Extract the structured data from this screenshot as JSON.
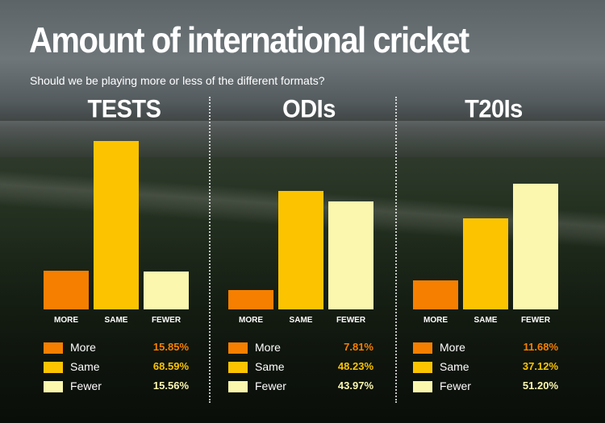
{
  "title": "Amount of international cricket",
  "subtitle": "Should we be playing more or less of the different formats?",
  "colors": {
    "more": "#f77f00",
    "same": "#fcc400",
    "fewer": "#fbf7ae",
    "more_text": "#f77f00",
    "same_text": "#fcc400",
    "fewer_text": "#fbf7ae"
  },
  "chart_data": [
    {
      "type": "bar",
      "title": "TESTS",
      "categories": [
        "MORE",
        "SAME",
        "FEWER"
      ],
      "values": [
        15.85,
        68.59,
        15.56
      ],
      "value_labels": [
        "15.85%",
        "68.59%",
        "15.56%"
      ],
      "legend": [
        "More",
        "Same",
        "Fewer"
      ]
    },
    {
      "type": "bar",
      "title": "ODIs",
      "categories": [
        "MORE",
        "SAME",
        "FEWER"
      ],
      "values": [
        7.81,
        48.23,
        43.97
      ],
      "value_labels": [
        "7.81%",
        "48.23%",
        "43.97%"
      ],
      "legend": [
        "More",
        "Same",
        "Fewer"
      ]
    },
    {
      "type": "bar",
      "title": "T20Is",
      "categories": [
        "MORE",
        "SAME",
        "FEWER"
      ],
      "values": [
        11.68,
        37.12,
        51.2
      ],
      "value_labels": [
        "11.68%",
        "37.12%",
        "51.20%"
      ],
      "legend": [
        "More",
        "Same",
        "Fewer"
      ]
    }
  ]
}
